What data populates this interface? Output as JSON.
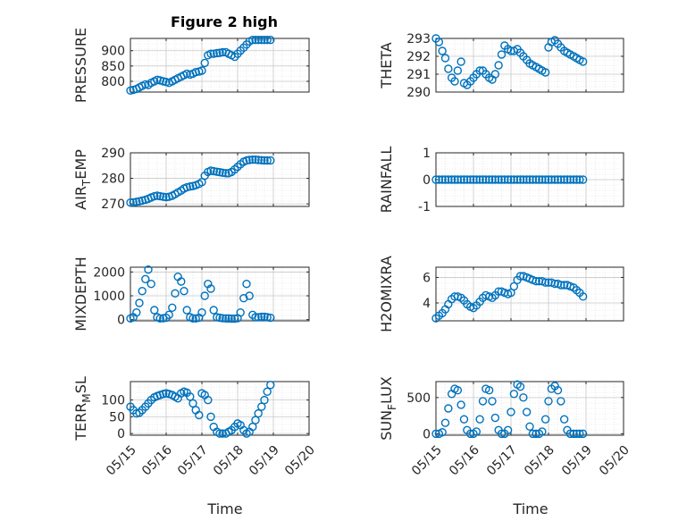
{
  "figure": {
    "title": "Figure 2 high",
    "colors": {
      "marker": "#0072BD",
      "axis": "#262626",
      "grid": "#d9d9d9"
    },
    "x_tick_labels": [
      "05/15",
      "05/16",
      "05/17",
      "05/18",
      "05/19",
      "05/20"
    ],
    "x_axis_label": "Time"
  },
  "chart_data": [
    {
      "type": "scatter",
      "ylabel": "PRESSURE",
      "ylabel_sub": "",
      "xlim": [
        0,
        5
      ],
      "ylim": [
        765,
        940
      ],
      "yticks": [
        800,
        850,
        900
      ],
      "x": [
        0,
        0.08,
        0.17,
        0.25,
        0.33,
        0.42,
        0.5,
        0.58,
        0.67,
        0.75,
        0.83,
        0.92,
        1.0,
        1.08,
        1.17,
        1.25,
        1.33,
        1.42,
        1.5,
        1.58,
        1.67,
        1.75,
        1.83,
        1.92,
        2.0,
        2.08,
        2.17,
        2.25,
        2.33,
        2.42,
        2.5,
        2.58,
        2.67,
        2.75,
        2.83,
        2.92,
        3.0,
        3.08,
        3.17,
        3.25,
        3.33,
        3.42,
        3.5,
        3.58,
        3.67,
        3.75,
        3.83,
        3.92
      ],
      "y": [
        770,
        772,
        775,
        780,
        785,
        790,
        788,
        795,
        800,
        805,
        803,
        800,
        798,
        795,
        800,
        805,
        810,
        815,
        820,
        825,
        822,
        825,
        830,
        832,
        835,
        860,
        885,
        890,
        890,
        892,
        893,
        895,
        895,
        890,
        885,
        880,
        890,
        900,
        910,
        920,
        930,
        935,
        935,
        935,
        935,
        935,
        935,
        935
      ]
    },
    {
      "type": "scatter",
      "ylabel": "THETA",
      "ylabel_sub": "",
      "xlim": [
        0,
        5
      ],
      "ylim": [
        290,
        293
      ],
      "yticks": [
        290,
        291,
        292,
        293
      ],
      "x": [
        0,
        0.08,
        0.17,
        0.25,
        0.33,
        0.42,
        0.5,
        0.58,
        0.67,
        0.75,
        0.83,
        0.92,
        1.0,
        1.08,
        1.17,
        1.25,
        1.33,
        1.42,
        1.5,
        1.58,
        1.67,
        1.75,
        1.83,
        1.92,
        2.0,
        2.08,
        2.17,
        2.25,
        2.33,
        2.42,
        2.5,
        2.58,
        2.67,
        2.75,
        2.83,
        2.92,
        3.0,
        3.08,
        3.17,
        3.25,
        3.33,
        3.42,
        3.5,
        3.58,
        3.67,
        3.75,
        3.83,
        3.92
      ],
      "y": [
        293,
        292.8,
        292.3,
        291.9,
        291.3,
        290.8,
        290.6,
        291.2,
        291.7,
        290.5,
        290.4,
        290.6,
        290.8,
        291.0,
        291.2,
        291.2,
        291.0,
        290.8,
        290.7,
        291.0,
        291.5,
        292.1,
        292.6,
        292.4,
        292.3,
        292.3,
        292.4,
        292.2,
        292.0,
        291.8,
        291.6,
        291.5,
        291.4,
        291.3,
        291.2,
        291.1,
        292.5,
        292.8,
        292.9,
        292.7,
        292.5,
        292.3,
        292.2,
        292.1,
        292.0,
        291.9,
        291.8,
        291.7
      ]
    },
    {
      "type": "scatter",
      "ylabel": "AIR",
      "ylabel_sub": "T",
      "ylabel_tail": "EMP",
      "xlim": [
        0,
        5
      ],
      "ylim": [
        269,
        290
      ],
      "yticks": [
        270,
        280,
        290
      ],
      "x": [
        0,
        0.08,
        0.17,
        0.25,
        0.33,
        0.42,
        0.5,
        0.58,
        0.67,
        0.75,
        0.83,
        0.92,
        1.0,
        1.08,
        1.17,
        1.25,
        1.33,
        1.42,
        1.5,
        1.58,
        1.67,
        1.75,
        1.83,
        1.92,
        2.0,
        2.08,
        2.17,
        2.25,
        2.33,
        2.42,
        2.5,
        2.58,
        2.67,
        2.75,
        2.83,
        2.92,
        3.0,
        3.08,
        3.17,
        3.25,
        3.33,
        3.42,
        3.5,
        3.58,
        3.67,
        3.75,
        3.83,
        3.92
      ],
      "y": [
        270.5,
        270.6,
        270.8,
        271.0,
        271.3,
        271.6,
        272.0,
        272.5,
        273.0,
        273.2,
        273.0,
        272.8,
        272.6,
        272.8,
        273.2,
        273.8,
        274.5,
        275.2,
        276.0,
        276.5,
        276.8,
        277.0,
        277.3,
        277.8,
        278.5,
        281.0,
        282.5,
        283.0,
        282.8,
        282.6,
        282.4,
        282.2,
        282.0,
        282.0,
        282.5,
        283.5,
        284.5,
        285.5,
        286.5,
        287.0,
        287.2,
        287.3,
        287.3,
        287.2,
        287.1,
        287.0,
        287.0,
        287.0
      ]
    },
    {
      "type": "scatter",
      "ylabel": "RAINFALL",
      "ylabel_sub": "",
      "xlim": [
        0,
        5
      ],
      "ylim": [
        -1,
        1
      ],
      "yticks": [
        -1,
        0,
        1
      ],
      "x": [
        0,
        0.08,
        0.17,
        0.25,
        0.33,
        0.42,
        0.5,
        0.58,
        0.67,
        0.75,
        0.83,
        0.92,
        1.0,
        1.08,
        1.17,
        1.25,
        1.33,
        1.42,
        1.5,
        1.58,
        1.67,
        1.75,
        1.83,
        1.92,
        2.0,
        2.08,
        2.17,
        2.25,
        2.33,
        2.42,
        2.5,
        2.58,
        2.67,
        2.75,
        2.83,
        2.92,
        3.0,
        3.08,
        3.17,
        3.25,
        3.33,
        3.42,
        3.5,
        3.58,
        3.67,
        3.75,
        3.83,
        3.92
      ],
      "y": [
        0,
        0,
        0,
        0,
        0,
        0,
        0,
        0,
        0,
        0,
        0,
        0,
        0,
        0,
        0,
        0,
        0,
        0,
        0,
        0,
        0,
        0,
        0,
        0,
        0,
        0,
        0,
        0,
        0,
        0,
        0,
        0,
        0,
        0,
        0,
        0,
        0,
        0,
        0,
        0,
        0,
        0,
        0,
        0,
        0,
        0,
        0,
        0
      ]
    },
    {
      "type": "scatter",
      "ylabel": "MIXDEPTH",
      "ylabel_sub": "",
      "xlim": [
        0,
        5
      ],
      "ylim": [
        -50,
        2200
      ],
      "yticks": [
        0,
        1000,
        2000
      ],
      "x": [
        0,
        0.08,
        0.17,
        0.25,
        0.33,
        0.42,
        0.5,
        0.58,
        0.67,
        0.75,
        0.83,
        0.92,
        1.0,
        1.08,
        1.17,
        1.25,
        1.33,
        1.42,
        1.5,
        1.58,
        1.67,
        1.75,
        1.83,
        1.92,
        2.0,
        2.08,
        2.17,
        2.25,
        2.33,
        2.42,
        2.5,
        2.58,
        2.67,
        2.75,
        2.83,
        2.92,
        3.0,
        3.08,
        3.17,
        3.25,
        3.33,
        3.42,
        3.5,
        3.58,
        3.67,
        3.75,
        3.83,
        3.92
      ],
      "y": [
        50,
        100,
        300,
        700,
        1200,
        1700,
        2100,
        1500,
        400,
        100,
        50,
        60,
        80,
        200,
        500,
        1100,
        1800,
        1600,
        1200,
        400,
        100,
        50,
        50,
        80,
        300,
        1000,
        1500,
        1300,
        400,
        100,
        80,
        60,
        50,
        50,
        40,
        40,
        60,
        300,
        900,
        1500,
        1000,
        200,
        100,
        100,
        120,
        120,
        100,
        80
      ]
    },
    {
      "type": "scatter",
      "ylabel": "H2OMIXRA",
      "ylabel_sub": "",
      "xlim": [
        0,
        5
      ],
      "ylim": [
        2.6,
        6.8
      ],
      "yticks": [
        4,
        6
      ],
      "x": [
        0,
        0.08,
        0.17,
        0.25,
        0.33,
        0.42,
        0.5,
        0.58,
        0.67,
        0.75,
        0.83,
        0.92,
        1.0,
        1.08,
        1.17,
        1.25,
        1.33,
        1.42,
        1.5,
        1.58,
        1.67,
        1.75,
        1.83,
        1.92,
        2.0,
        2.08,
        2.17,
        2.25,
        2.33,
        2.42,
        2.5,
        2.58,
        2.67,
        2.75,
        2.83,
        2.92,
        3.0,
        3.08,
        3.17,
        3.25,
        3.33,
        3.42,
        3.5,
        3.58,
        3.67,
        3.75,
        3.83,
        3.92
      ],
      "y": [
        2.8,
        3.0,
        3.2,
        3.5,
        3.9,
        4.3,
        4.5,
        4.5,
        4.4,
        4.2,
        3.9,
        3.7,
        3.6,
        3.8,
        4.1,
        4.4,
        4.6,
        4.5,
        4.4,
        4.6,
        4.9,
        4.9,
        4.8,
        4.7,
        4.8,
        5.3,
        5.8,
        6.1,
        6.1,
        6.0,
        5.9,
        5.8,
        5.7,
        5.7,
        5.7,
        5.6,
        5.6,
        5.6,
        5.5,
        5.5,
        5.4,
        5.4,
        5.4,
        5.3,
        5.2,
        5.0,
        4.8,
        4.5
      ]
    },
    {
      "type": "scatter",
      "ylabel": "TERR",
      "ylabel_sub": "M",
      "ylabel_tail": "SL",
      "xlim": [
        0,
        5
      ],
      "ylim": [
        -5,
        155
      ],
      "yticks": [
        0,
        50,
        100
      ],
      "x": [
        0,
        0.08,
        0.17,
        0.25,
        0.33,
        0.42,
        0.5,
        0.58,
        0.67,
        0.75,
        0.83,
        0.92,
        1.0,
        1.08,
        1.17,
        1.25,
        1.33,
        1.42,
        1.5,
        1.58,
        1.67,
        1.75,
        1.83,
        1.92,
        2.0,
        2.08,
        2.17,
        2.25,
        2.33,
        2.42,
        2.5,
        2.58,
        2.67,
        2.75,
        2.83,
        2.92,
        3.0,
        3.08,
        3.17,
        3.25,
        3.33,
        3.42,
        3.5,
        3.58,
        3.67,
        3.75,
        3.83,
        3.92
      ],
      "y": [
        80,
        70,
        60,
        62,
        70,
        80,
        90,
        100,
        108,
        112,
        115,
        118,
        120,
        118,
        115,
        110,
        105,
        120,
        125,
        122,
        110,
        90,
        70,
        55,
        120,
        115,
        100,
        50,
        20,
        5,
        0,
        0,
        0,
        5,
        10,
        20,
        30,
        25,
        10,
        0,
        5,
        20,
        40,
        60,
        80,
        100,
        125,
        145
      ]
    },
    {
      "type": "scatter",
      "ylabel": "SUN",
      "ylabel_sub": "F",
      "ylabel_tail": "LUX",
      "xlim": [
        0,
        5
      ],
      "ylim": [
        -20,
        720
      ],
      "yticks": [
        0,
        500
      ],
      "x": [
        0,
        0.08,
        0.17,
        0.25,
        0.33,
        0.42,
        0.5,
        0.58,
        0.67,
        0.75,
        0.83,
        0.92,
        1.0,
        1.08,
        1.17,
        1.25,
        1.33,
        1.42,
        1.5,
        1.58,
        1.67,
        1.75,
        1.83,
        1.92,
        2.0,
        2.08,
        2.17,
        2.25,
        2.33,
        2.42,
        2.5,
        2.58,
        2.67,
        2.75,
        2.83,
        2.92,
        3.0,
        3.08,
        3.17,
        3.25,
        3.33,
        3.42,
        3.5,
        3.58,
        3.67,
        3.75,
        3.83,
        3.92
      ],
      "y": [
        0,
        0,
        20,
        150,
        350,
        550,
        620,
        600,
        400,
        200,
        50,
        0,
        0,
        30,
        200,
        450,
        620,
        600,
        450,
        220,
        50,
        0,
        0,
        50,
        300,
        550,
        680,
        650,
        500,
        300,
        100,
        0,
        0,
        0,
        30,
        200,
        450,
        620,
        660,
        600,
        450,
        200,
        50,
        0,
        0,
        0,
        0,
        0
      ]
    }
  ]
}
